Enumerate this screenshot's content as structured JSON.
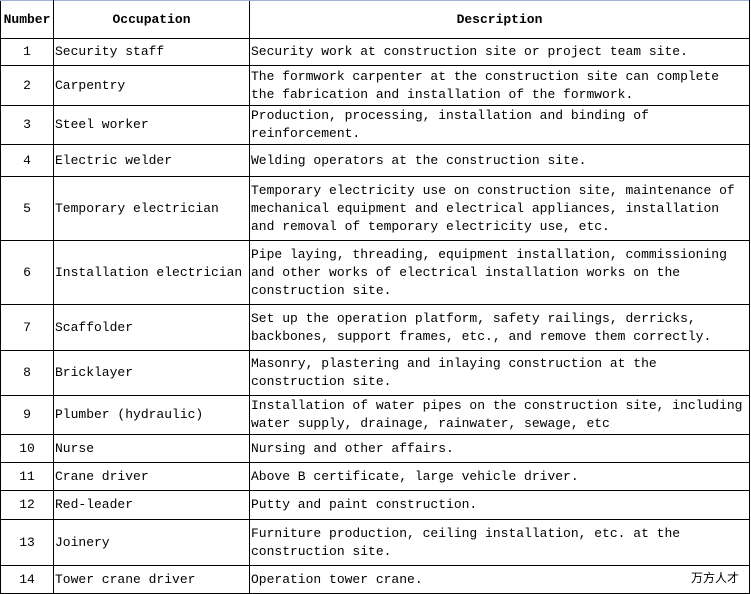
{
  "headers": {
    "number": "Number",
    "occupation": "Occupation",
    "description": "Description"
  },
  "rows": [
    {
      "number": "1",
      "occupation": "Security staff",
      "description": "Security work at construction site or project team site."
    },
    {
      "number": "2",
      "occupation": "Carpentry",
      "description": "The formwork carpenter at the construction site can complete the fabrication and installation of the formwork."
    },
    {
      "number": "3",
      "occupation": "Steel worker",
      "description": "Production, processing, installation and binding of reinforcement."
    },
    {
      "number": "4",
      "occupation": "Electric welder",
      "description": "Welding operators at the construction site."
    },
    {
      "number": "5",
      "occupation": "Temporary electrician",
      "description": "Temporary electricity use on construction site, maintenance of mechanical equipment and electrical appliances, installation and removal of temporary electricity use, etc."
    },
    {
      "number": "6",
      "occupation": "Installation electrician",
      "description": "Pipe laying, threading, equipment installation, commissioning and other works of electrical installation works on the construction site."
    },
    {
      "number": "7",
      "occupation": "Scaffolder",
      "description": "Set up the operation platform, safety railings, derricks, backbones, support frames, etc., and remove them correctly."
    },
    {
      "number": "8",
      "occupation": "Bricklayer",
      "description": "Masonry, plastering and inlaying construction at the construction site."
    },
    {
      "number": "9",
      "occupation": "Plumber (hydraulic)",
      "description": "Installation of water pipes on the construction site, including water supply, drainage, rainwater, sewage, etc"
    },
    {
      "number": "10",
      "occupation": "Nurse",
      "description": "Nursing and other affairs."
    },
    {
      "number": "11",
      "occupation": "Crane driver",
      "description": "Above B certificate, large vehicle driver."
    },
    {
      "number": "12",
      "occupation": "Red-leader",
      "description": "Putty and paint construction."
    },
    {
      "number": "13",
      "occupation": "Joinery",
      "description": "Furniture production, ceiling installation, etc. at the construction site."
    },
    {
      "number": "14",
      "occupation": "Tower crane driver",
      "description": "Operation tower crane."
    }
  ],
  "watermark": "万方人才"
}
